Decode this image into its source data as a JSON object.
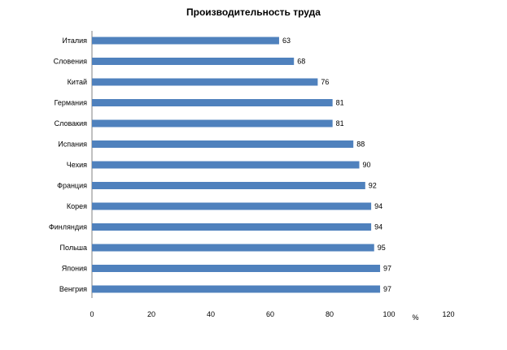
{
  "chart_data": {
    "type": "bar",
    "orientation": "horizontal",
    "title": "Производительность труда",
    "categories": [
      "Италия",
      "Словения",
      "Китай",
      "Германия",
      "Словакия",
      "Испания",
      "Чехия",
      "Франция",
      "Корея",
      "Финляндия",
      "Польша",
      "Япония",
      "Венгрия"
    ],
    "values": [
      63,
      68,
      76,
      81,
      81,
      88,
      90,
      92,
      94,
      94,
      95,
      97,
      97
    ],
    "xlim": [
      0,
      120
    ],
    "xticks": [
      0,
      20,
      40,
      60,
      80,
      100,
      120
    ],
    "xunit": "%",
    "grid": false,
    "legend": "none",
    "bar_color": "#4F81BD"
  }
}
